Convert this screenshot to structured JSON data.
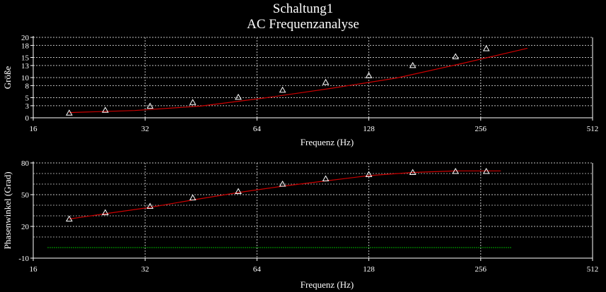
{
  "title": "Schaltung1",
  "subtitle": "AC Frequenzanalyse",
  "chart_data": [
    {
      "type": "line",
      "ylabel": "Größe",
      "xlabel": "Frequenz (Hz)",
      "x_scale": "log2",
      "xlim": [
        16,
        512
      ],
      "ylim": [
        0,
        20
      ],
      "xticks": [
        "16",
        "32",
        "64",
        "128",
        "256",
        "512"
      ],
      "yticks": [
        "0",
        "3",
        "5",
        "8",
        "10",
        "13",
        "15",
        "18",
        "20"
      ],
      "grid": true,
      "colors": {
        "line": "#cc0000",
        "marker": "#ffffff",
        "grid": "#bfbfbf",
        "axis": "#ffffff"
      },
      "series": [
        {
          "x": [
            20,
            30,
            45,
            68,
            101,
            152,
            228,
            342
          ],
          "y": [
            1.3,
            1.8,
            2.9,
            5.0,
            7.3,
            9.9,
            13.5,
            17.3
          ]
        }
      ],
      "markers": {
        "x": [
          20,
          25,
          33,
          43,
          57,
          75,
          98,
          128,
          168,
          219,
          265
        ],
        "y": [
          1.2,
          1.9,
          2.9,
          3.8,
          5.1,
          6.9,
          8.8,
          10.5,
          13.0,
          15.2,
          17.2
        ]
      }
    },
    {
      "type": "line",
      "ylabel": "Phasenwinkel (Grad)",
      "xlabel": "Frequenz (Hz)",
      "x_scale": "log2",
      "xlim": [
        16,
        512
      ],
      "ylim": [
        -10,
        80
      ],
      "xticks": [
        "16",
        "32",
        "64",
        "128",
        "256",
        "512"
      ],
      "yticks": [
        "-10",
        "20",
        "50",
        "80"
      ],
      "grid": true,
      "colors": {
        "line": "#cc0000",
        "marker": "#ffffff",
        "grid": "#bfbfbf",
        "axis": "#ffffff",
        "reference": "#00aa00"
      },
      "series": [
        {
          "x": [
            20,
            25,
            33,
            43,
            57,
            75,
            98,
            128,
            168,
            219,
            290
          ],
          "y": [
            27,
            32,
            38,
            45,
            52,
            58,
            63,
            68,
            71,
            72.5,
            72.5
          ]
        }
      ],
      "markers": {
        "x": [
          20,
          25,
          33,
          43,
          57,
          75,
          98,
          128,
          168,
          219,
          265
        ],
        "y": [
          27,
          33,
          39,
          47,
          53,
          60,
          65,
          69,
          71,
          72,
          72
        ]
      },
      "reference_line": {
        "y": 0
      }
    }
  ]
}
